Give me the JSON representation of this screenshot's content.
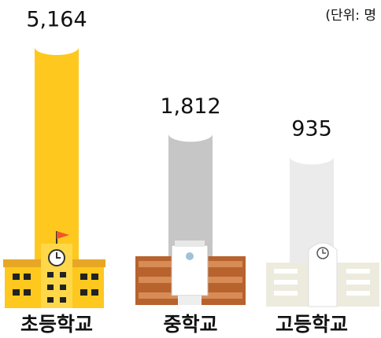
{
  "chart_data": {
    "type": "bar",
    "unit_note": "(단위: 명",
    "categories": [
      "초등학교",
      "중학교",
      "고등학교"
    ],
    "values": [
      5164,
      1812,
      935
    ],
    "value_labels": [
      "5,164",
      "1,812",
      "935"
    ],
    "colors": [
      "#FFC81E",
      "#C6C6C6",
      "#EBEBEB"
    ]
  }
}
